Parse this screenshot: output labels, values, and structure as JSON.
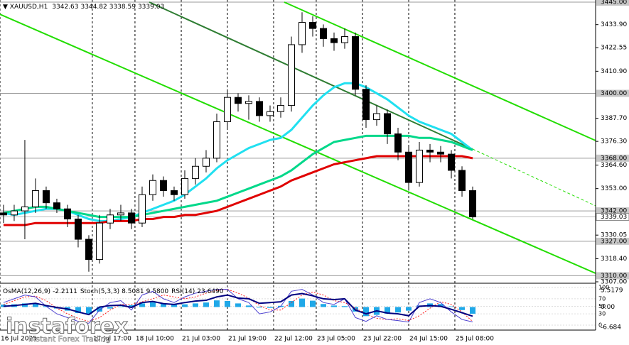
{
  "chart_data": {
    "type": "candlestick",
    "title": "XAUUSD,H1",
    "header_values": [
      3342.63,
      3344.82,
      3338.59,
      3339.03
    ],
    "categories": [
      null,
      null,
      null,
      null,
      null,
      null,
      null,
      null,
      null,
      null,
      null,
      null,
      null,
      null,
      null,
      null,
      null,
      null,
      null,
      null,
      null,
      null,
      null,
      null,
      null,
      null,
      null,
      null,
      null,
      null,
      null,
      null,
      null,
      null,
      null,
      null,
      null,
      null,
      null,
      null,
      null,
      null,
      null,
      null,
      null
    ],
    "open": [
      3341,
      3340,
      3342,
      3344,
      3352,
      3346,
      3343,
      3338,
      3328,
      3318,
      3336,
      3340,
      3341,
      3336,
      3350,
      3357,
      3352,
      3350,
      3358,
      3364,
      3368,
      3386,
      3398,
      3395,
      3396,
      3389,
      3391,
      3394,
      3424,
      3435,
      3432,
      3427,
      3425,
      3428,
      3402,
      3387,
      3390,
      3380,
      3371,
      3356,
      3372,
      3371,
      3370,
      3362,
      3352
    ],
    "high": [
      3345,
      3345,
      3377,
      3358,
      3354,
      3348,
      3345,
      3340,
      3330,
      3340,
      3343,
      3345,
      3343,
      3354,
      3360,
      3359,
      3354,
      3362,
      3368,
      3372,
      3390,
      3402,
      3400,
      3399,
      3398,
      3394,
      3398,
      3428,
      3440,
      3438,
      3434,
      3430,
      3432,
      3430,
      3404,
      3394,
      3392,
      3383,
      3374,
      3376,
      3375,
      3374,
      3372,
      3364,
      3354
    ],
    "low": [
      3336,
      3337,
      3328,
      3341,
      3343,
      3341,
      3334,
      3324,
      3312,
      3316,
      3333,
      3337,
      3333,
      3334,
      3347,
      3349,
      3347,
      3348,
      3355,
      3361,
      3366,
      3383,
      3391,
      3387,
      3386,
      3386,
      3388,
      3391,
      3420,
      3428,
      3423,
      3421,
      3422,
      3399,
      3383,
      3384,
      3375,
      3367,
      3352,
      3354,
      3366,
      3366,
      3358,
      3349,
      3338
    ],
    "close": [
      3340,
      3342,
      3344,
      3352,
      3346,
      3343,
      3338,
      3328,
      3318,
      3336,
      3340,
      3341,
      3336,
      3350,
      3357,
      3352,
      3350,
      3358,
      3364,
      3368,
      3386,
      3398,
      3395,
      3396,
      3389,
      3391,
      3394,
      3424,
      3435,
      3432,
      3427,
      3425,
      3428,
      3402,
      3387,
      3390,
      3380,
      3371,
      3356,
      3372,
      3371,
      3370,
      3362,
      3352,
      3339.03
    ],
    "ma_lines": [
      {
        "color": "#20e0f0",
        "values": [
          3341,
          3340,
          3341,
          3342,
          3343,
          3343,
          3342,
          3340,
          3338,
          3337,
          3337,
          3338,
          3339,
          3341,
          3343,
          3345,
          3347,
          3350,
          3354,
          3358,
          3363,
          3367,
          3370,
          3373,
          3375,
          3377,
          3378,
          3382,
          3388,
          3394,
          3399,
          3403,
          3405,
          3405,
          3403,
          3400,
          3397,
          3393,
          3389,
          3386,
          3384,
          3382,
          3380,
          3376,
          3372
        ]
      },
      {
        "color": "#00d88a",
        "values": [
          3341,
          3342,
          3343,
          3344,
          3344,
          3343,
          3342,
          3341,
          3340,
          3339,
          3339,
          3339,
          3339,
          3340,
          3341,
          3342,
          3343,
          3344,
          3345,
          3346,
          3347,
          3349,
          3351,
          3353,
          3355,
          3357,
          3359,
          3362,
          3366,
          3370,
          3373,
          3376,
          3377,
          3378,
          3379,
          3379,
          3379,
          3379,
          3379,
          3378,
          3378,
          3377,
          3376,
          3374,
          3372
        ]
      },
      {
        "color": "#e00000",
        "values": [
          3335,
          3335,
          3335,
          3336,
          3336,
          3336,
          3336,
          3336,
          3336,
          3336,
          3337,
          3337,
          3337,
          3338,
          3338,
          3339,
          3339,
          3340,
          3340,
          3341,
          3342,
          3344,
          3346,
          3348,
          3350,
          3352,
          3354,
          3357,
          3359,
          3361,
          3363,
          3365,
          3366,
          3367,
          3368,
          3369,
          3369,
          3369,
          3369,
          3369,
          3369,
          3369,
          3369,
          3369,
          3368
        ]
      }
    ],
    "trendlines": [
      {
        "color": "#22dd00",
        "style": "solid",
        "x": [
          -0.33,
          55.53
        ],
        "y": [
          3439.0,
          3311.2
        ]
      },
      {
        "color": "#22dd00",
        "style": "solid",
        "x": [
          26.33,
          55.53
        ],
        "y": [
          3445,
          3376.7
        ]
      },
      {
        "color": "#2e7d32",
        "style": "solid",
        "x": [
          13.67,
          44
        ],
        "y": [
          3445,
          3372.5
        ]
      },
      {
        "color": "#22dd00",
        "style": "dashed",
        "x": [
          44,
          55.53
        ],
        "y": [
          3372.5,
          3344.5
        ]
      }
    ],
    "levels": [
      {
        "value": 3445,
        "label": "3445.00"
      },
      {
        "value": 3400,
        "label": "3400.00"
      },
      {
        "value": 3368,
        "label": "3368.00"
      },
      {
        "value": 3342,
        "label": "3342.00"
      },
      {
        "value": 3327,
        "label": "3327.00"
      },
      {
        "value": 3310,
        "label": "3310.00"
      }
    ],
    "last_price": 3339.03,
    "xlim": [
      -0.33,
      55.53
    ],
    "ylim": [
      3307,
      3445
    ],
    "yticks": [
      {
        "value": 3433.9,
        "label": "3433.90"
      },
      {
        "value": 3422.55,
        "label": "3422.55"
      },
      {
        "value": 3410.9,
        "label": "3410.90"
      },
      {
        "value": 3387.7,
        "label": "3387.70"
      },
      {
        "value": 3376.3,
        "label": "3376.30"
      },
      {
        "value": 3364.6,
        "label": "3364.60"
      },
      {
        "value": 3353,
        "label": "3353.00"
      },
      {
        "value": 3330.05,
        "label": "3330.05"
      },
      {
        "value": 3318.4,
        "label": "3318.40"
      },
      {
        "value": 3307,
        "label": "3307.00"
      }
    ],
    "xticks": [
      {
        "value": -0.33,
        "label": "16 Jul 2025"
      },
      {
        "value": 8.33,
        "label": "17 Jul 17:00"
      },
      {
        "value": 12.33,
        "label": "18 Jul 10:00"
      },
      {
        "value": 16.67,
        "label": "21 Jul 03:00"
      },
      {
        "value": 21,
        "label": "21 Jul 19:00"
      },
      {
        "value": 25.33,
        "label": "22 Jul 12:00"
      },
      {
        "value": 29.33,
        "label": "23 Jul 05:00"
      },
      {
        "value": 33.67,
        "label": "23 Jul 22:00"
      },
      {
        "value": 38,
        "label": "24 Jul 15:00"
      },
      {
        "value": 42.33,
        "label": "25 Jul 08:00"
      }
    ],
    "indicators": {
      "osma": {
        "label": "OsMA(12,26,9)",
        "value": -2.2111,
        "color": "#1fa8e8",
        "ylim": [
          -6.684,
          5.5179
        ],
        "yticks": [
          5.5179,
          {
            "value": 0,
            "label": "0.00"
          },
          -6.684
        ],
        "values": [
          0.8,
          0.9,
          1.2,
          1.0,
          0.3,
          -0.5,
          -1.2,
          -2.0,
          -2.4,
          -1.5,
          -0.5,
          0.2,
          0.6,
          1.2,
          1.6,
          1.3,
          0.8,
          0.9,
          1.2,
          1.5,
          2.2,
          2.0,
          1.2,
          0.5,
          -0.2,
          -0.3,
          0.4,
          2.0,
          2.8,
          2.1,
          1.0,
          0.5,
          0.3,
          -1.5,
          -3.0,
          -2.6,
          -2.2,
          -1.8,
          -1.2,
          0.5,
          1.2,
          1.0,
          0.2,
          -1.0,
          -2.2111
        ]
      },
      "oscillator_ylim": [
        0,
        100
      ],
      "oscillator_yticks": [
        100,
        70,
        50,
        30,
        0
      ],
      "stoch": {
        "label": "Stoch(5,3,3)",
        "main": 8.5081,
        "signal": {
          "value": 9.58,
          "label": "9.5800"
        },
        "main_color": "#4b3fd0",
        "signal_color": "#ff2020",
        "main_values": [
          60,
          70,
          80,
          75,
          50,
          30,
          20,
          10,
          5,
          40,
          60,
          65,
          40,
          80,
          90,
          70,
          60,
          75,
          85,
          90,
          95,
          95,
          70,
          60,
          30,
          35,
          50,
          90,
          95,
          80,
          60,
          55,
          70,
          20,
          10,
          25,
          15,
          12,
          8,
          60,
          70,
          60,
          35,
          15,
          8.5081
        ],
        "signal_values": [
          55,
          65,
          75,
          77,
          65,
          45,
          30,
          18,
          10,
          20,
          40,
          55,
          55,
          62,
          70,
          80,
          75,
          70,
          75,
          85,
          92,
          95,
          85,
          72,
          52,
          40,
          40,
          60,
          80,
          88,
          80,
          65,
          60,
          45,
          30,
          18,
          15,
          17,
          12,
          25,
          45,
          62,
          55,
          35,
          9.58
        ]
      },
      "rsi": {
        "label": "RSI(14)",
        "value": {
          "value": 23.649,
          "label": "23.6490"
        },
        "color": "#000080",
        "values": [
          50,
          52,
          55,
          58,
          52,
          47,
          43,
          35,
          28,
          48,
          52,
          53,
          47,
          60,
          63,
          57,
          55,
          60,
          64,
          66,
          75,
          80,
          72,
          70,
          58,
          60,
          62,
          80,
          84,
          78,
          70,
          68,
          70,
          40,
          30,
          38,
          32,
          30,
          25,
          50,
          52,
          50,
          42,
          33,
          23.649
        ]
      }
    },
    "watermark": {
      "brand": "instaforex",
      "tagline": "Instant Forex Trading"
    }
  }
}
